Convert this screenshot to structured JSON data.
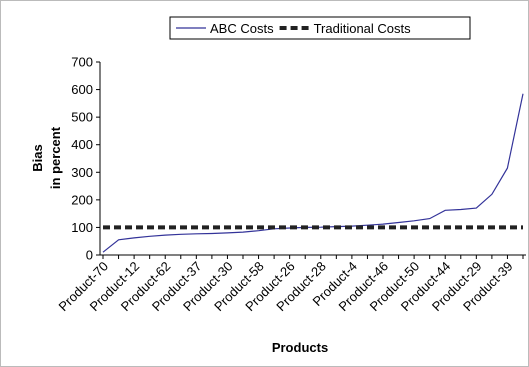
{
  "chart_data": {
    "type": "line",
    "ylabel": [
      "Bias",
      "in percent"
    ],
    "xlabel": "Products",
    "categories": [
      "Product-70",
      null,
      "Product-12",
      null,
      "Product-62",
      null,
      "Product-37",
      null,
      "Product-30",
      null,
      "Product-58",
      null,
      "Product-26",
      null,
      "Product-28",
      null,
      "Product-4",
      null,
      "Product-46",
      null,
      "Product-50",
      null,
      "Product-44",
      null,
      "Product-29",
      null,
      "Product-39",
      null
    ],
    "series": [
      {
        "name": "ABC Costs",
        "color": "#333399",
        "dash": false,
        "values": [
          10,
          55,
          62,
          68,
          72,
          75,
          77,
          78,
          80,
          83,
          88,
          95,
          98,
          100,
          101,
          103,
          105,
          108,
          112,
          118,
          124,
          132,
          162,
          165,
          170,
          220,
          315,
          585
        ]
      },
      {
        "name": "Traditional Costs",
        "color": "#222222",
        "dash": true,
        "values": [
          100,
          100,
          100,
          100,
          100,
          100,
          100,
          100,
          100,
          100,
          100,
          100,
          100,
          100,
          100,
          100,
          100,
          100,
          100,
          100,
          100,
          100,
          100,
          100,
          100,
          100,
          100,
          100
        ]
      }
    ],
    "ylim": [
      0,
      700
    ],
    "yticks": [
      0,
      100,
      200,
      300,
      400,
      500,
      600,
      700
    ],
    "grid": false,
    "legend": "top"
  }
}
